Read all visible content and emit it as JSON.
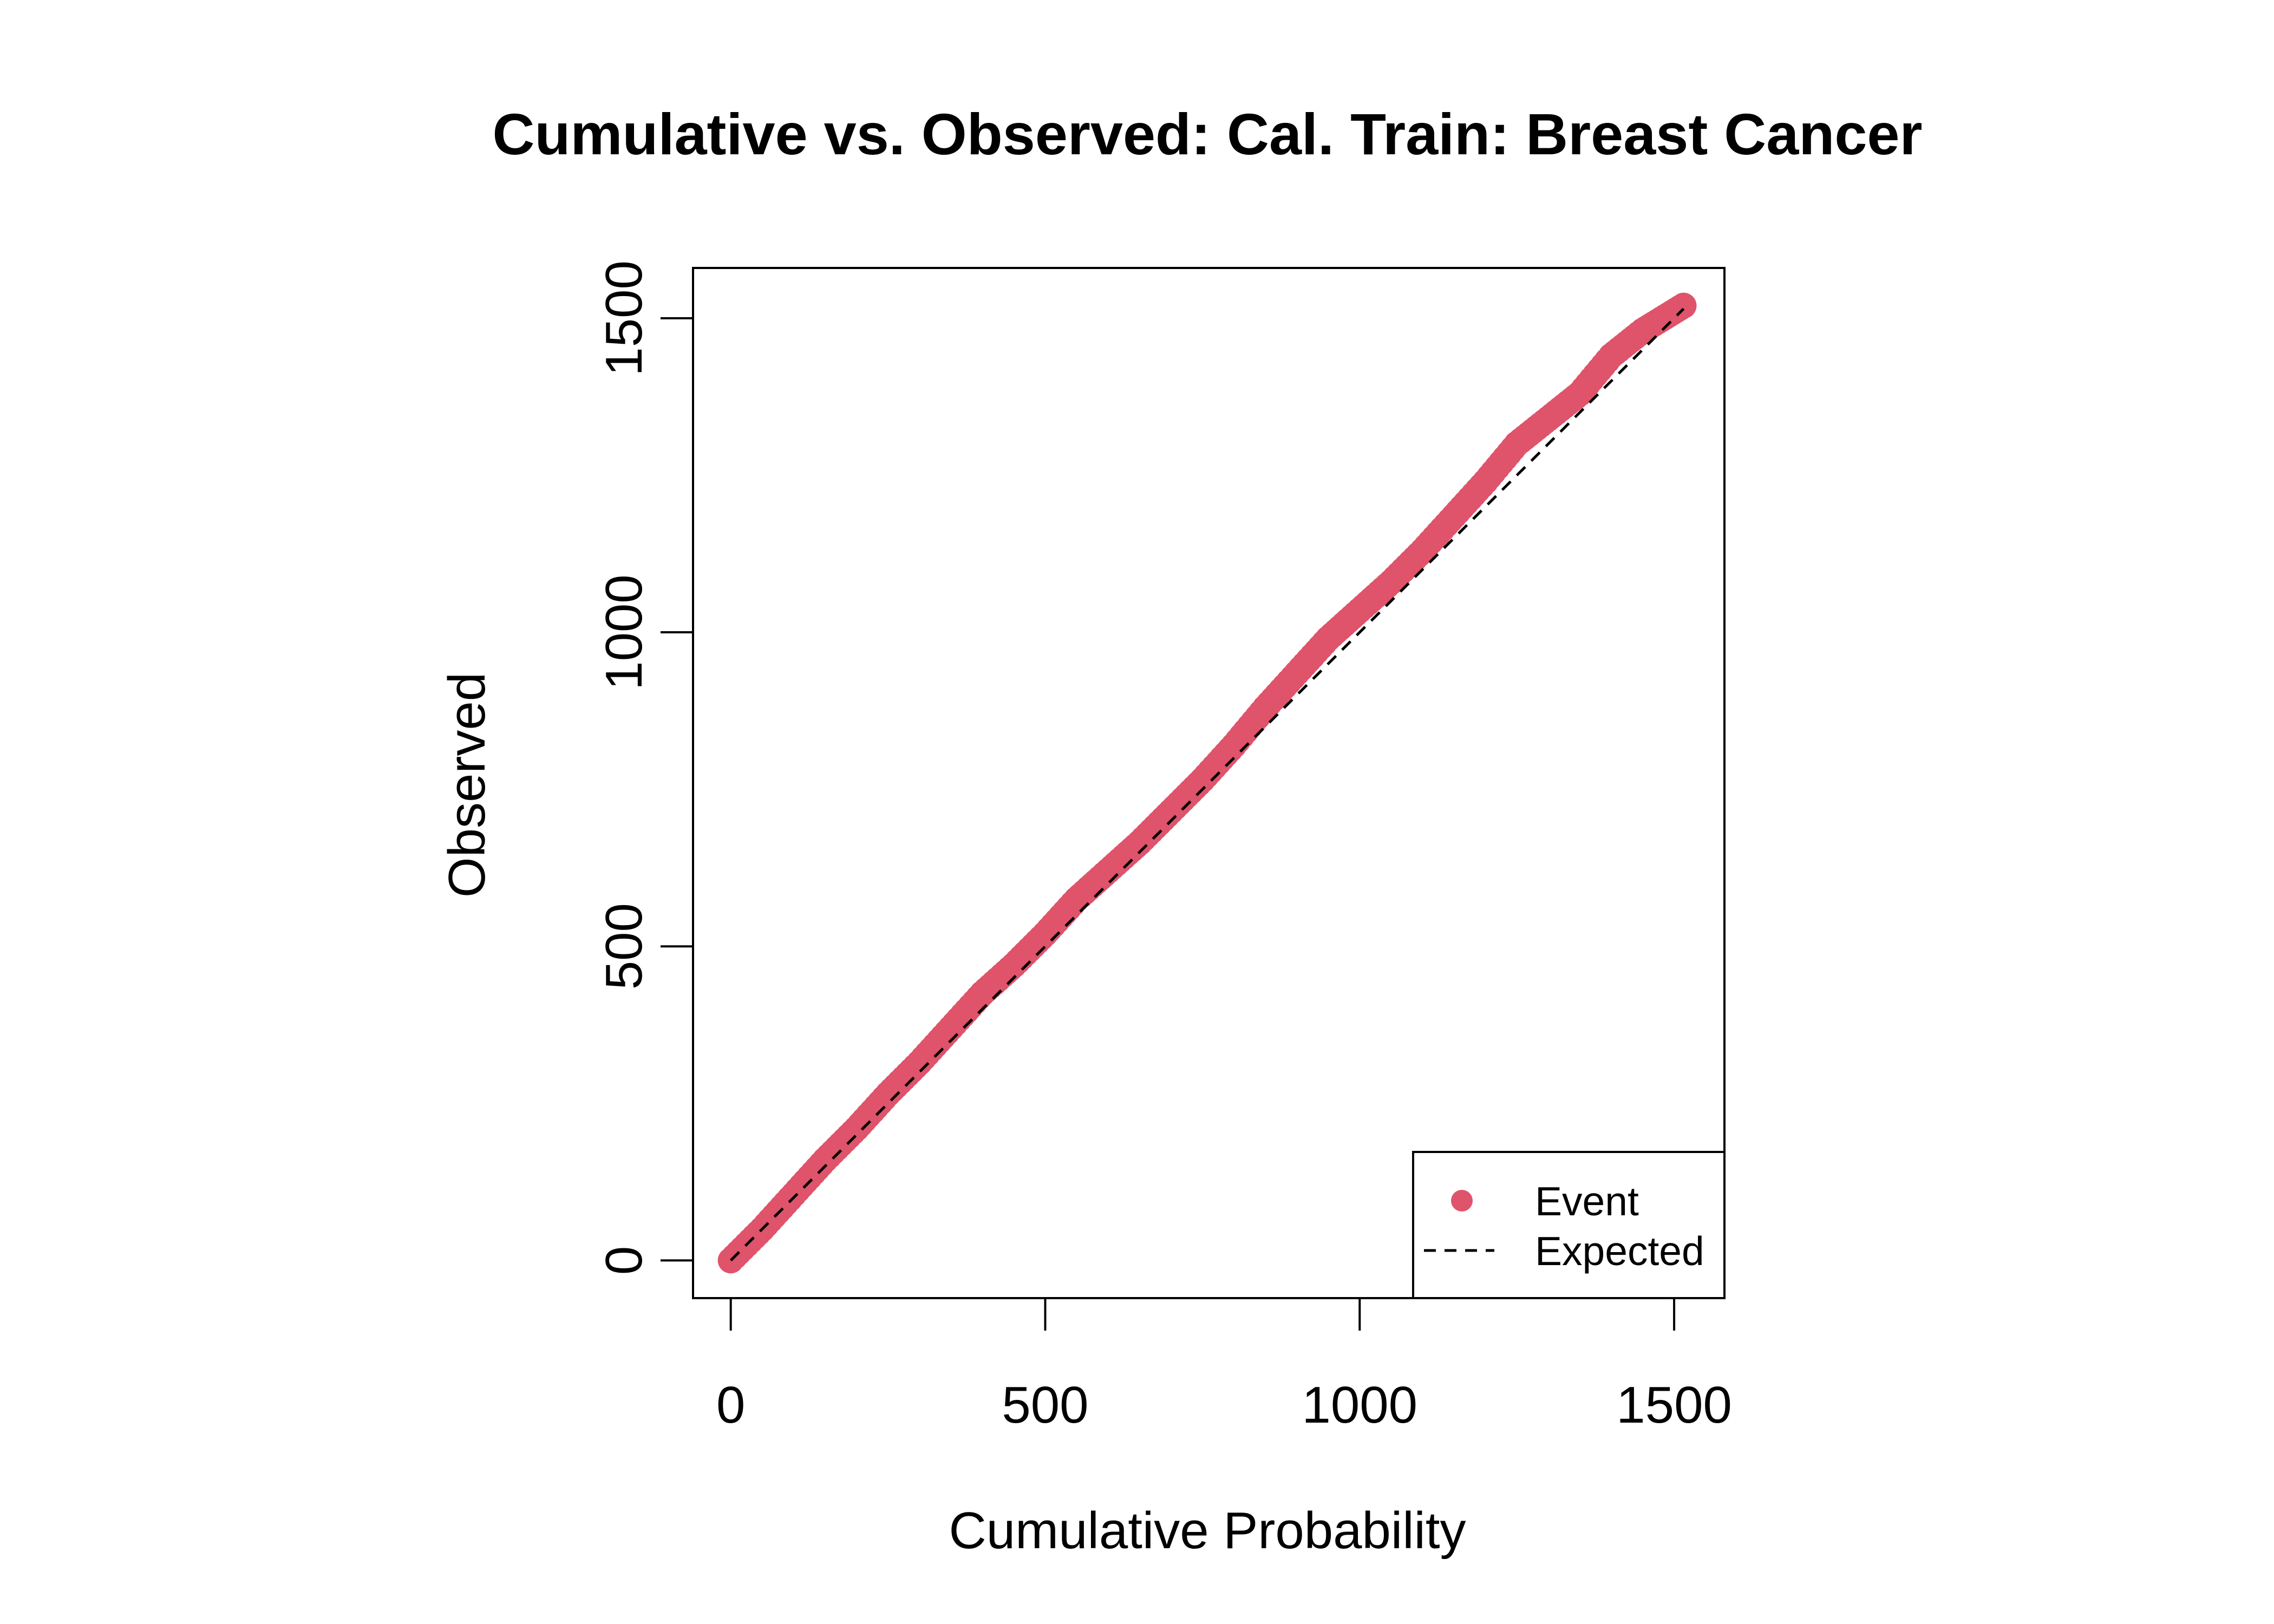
{
  "chart_data": {
    "type": "scatter",
    "title": "Cumulative vs. Observed: Cal. Train: Breast Cancer",
    "xlabel": "Cumulative Probability",
    "ylabel": "Observed",
    "xlim": [
      -60,
      1580
    ],
    "ylim": [
      -60,
      1580
    ],
    "xticks": [
      0,
      500,
      1000,
      1500
    ],
    "yticks": [
      0,
      500,
      1000,
      1500
    ],
    "xtick_labels": [
      "0",
      "500",
      "1000",
      "1500"
    ],
    "ytick_labels": [
      "0",
      "500",
      "1000",
      "1500"
    ],
    "grid": false,
    "legend_position": "bottom-right",
    "series": [
      {
        "name": "Event",
        "kind": "points",
        "color": "#DF536B",
        "x": [
          0,
          50,
          100,
          150,
          200,
          250,
          300,
          350,
          400,
          450,
          500,
          550,
          600,
          650,
          700,
          750,
          800,
          850,
          900,
          950,
          1000,
          1050,
          1100,
          1150,
          1200,
          1250,
          1300,
          1350,
          1400,
          1450,
          1515
        ],
        "y": [
          0,
          50,
          105,
          160,
          210,
          265,
          315,
          370,
          425,
          470,
          520,
          575,
          620,
          665,
          715,
          765,
          820,
          880,
          935,
          990,
          1035,
          1080,
          1130,
          1185,
          1240,
          1300,
          1340,
          1380,
          1440,
          1480,
          1520
        ]
      },
      {
        "name": "Expected",
        "kind": "dashed-line",
        "color": "#000000",
        "x": [
          0,
          1515
        ],
        "y": [
          0,
          1515
        ]
      }
    ]
  }
}
